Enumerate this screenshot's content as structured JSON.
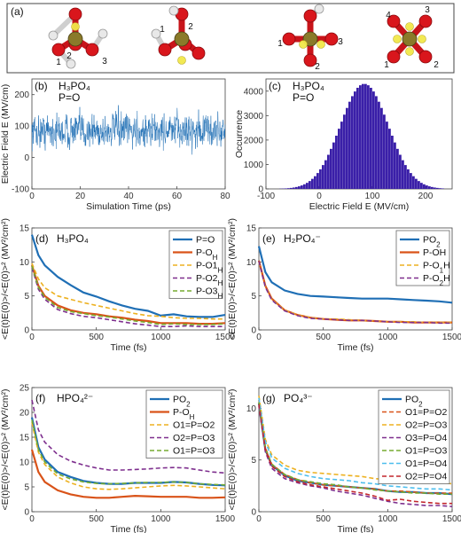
{
  "panel_a": {
    "letter": "(a)",
    "molecules": [
      {
        "labels": [
          "1",
          "2",
          "3"
        ]
      },
      {
        "labels": [
          "1",
          "2"
        ]
      },
      {
        "labels": [
          "1",
          "2",
          "3"
        ]
      },
      {
        "labels": [
          "1",
          "2",
          "3",
          "4"
        ]
      }
    ]
  },
  "colors": {
    "blue": "#1f6fb5",
    "orange": "#d95319",
    "yellow": "#edb120",
    "purple": "#7e2f8e",
    "green": "#77ac30",
    "cyan": "#4dbeee",
    "red": "#c2272d",
    "histogram": "#3a1fa8",
    "oxygen": "#d9161c",
    "phosphorus": "#8a7a2a",
    "hydrogen": "#e8e8e8",
    "field": "#f2e84a"
  },
  "chart_data": [
    {
      "id": "b",
      "type": "line",
      "letter": "(b)",
      "title_lines": [
        "H₃PO₄",
        "P=O"
      ],
      "xlabel": "Simulation Time (ps)",
      "ylabel": "Electric Field E (MV/cm)",
      "xlim": [
        0,
        80
      ],
      "ylim": [
        -100,
        250
      ],
      "xticks": [
        0,
        20,
        40,
        60,
        80
      ],
      "yticks": [
        -100,
        0,
        100,
        200
      ],
      "grid": false,
      "series": [
        {
          "mean": 85,
          "std": 45,
          "color": "#1f6fb5"
        }
      ]
    },
    {
      "id": "c",
      "type": "bar",
      "letter": "(c)",
      "title_lines": [
        "H₃PO₄",
        "P=O"
      ],
      "xlabel": "Electric Field E (MV/cm)",
      "ylabel": "Occurrence",
      "xlim": [
        -100,
        250
      ],
      "ylim": [
        0,
        4500
      ],
      "xticks": [
        -100,
        0,
        100,
        200
      ],
      "yticks": [
        0,
        1000,
        2000,
        3000,
        4000
      ],
      "grid": false,
      "bin_width": 5,
      "peak": 4300,
      "center": 85,
      "sigma": 45
    },
    {
      "id": "d",
      "type": "line",
      "letter": "(d)",
      "title": "H₃PO₄",
      "xlabel": "Time (fs)",
      "ylabel": "<E(t)E(0)>/<E(0)>² (MV²/cm²)",
      "xlim": [
        0,
        1500
      ],
      "ylim": [
        0,
        15
      ],
      "xticks": [
        0,
        500,
        1000,
        1500
      ],
      "yticks": [
        0,
        5,
        10,
        15
      ],
      "legend_position": "top-right",
      "series": [
        {
          "name": "P=O",
          "color": "#1f6fb5",
          "dash": "solid",
          "x": [
            0,
            50,
            100,
            200,
            300,
            400,
            500,
            600,
            700,
            800,
            900,
            1000,
            1100,
            1200,
            1300,
            1400,
            1500
          ],
          "y": [
            14,
            11,
            9.5,
            7.8,
            6.6,
            5.5,
            4.9,
            4.2,
            3.6,
            3.1,
            2.8,
            2.1,
            2.3,
            2.0,
            1.9,
            1.9,
            2.2
          ]
        },
        {
          "name": "P-O_H",
          "color": "#d95319",
          "dash": "solid",
          "x": [
            0,
            50,
            100,
            200,
            300,
            400,
            500,
            600,
            700,
            800,
            900,
            1000,
            1100,
            1200,
            1300,
            1400,
            1500
          ],
          "y": [
            9.5,
            6.5,
            5.0,
            3.6,
            2.9,
            2.5,
            2.3,
            2.0,
            1.8,
            1.5,
            1.3,
            1.0,
            1.0,
            1.0,
            0.9,
            0.9,
            1.0
          ]
        },
        {
          "name": "P-O1_H",
          "color": "#edb120",
          "dash": "dashed",
          "x": [
            0,
            50,
            100,
            200,
            300,
            400,
            500,
            600,
            700,
            800,
            900,
            1000,
            1100,
            1200,
            1300,
            1400,
            1500
          ],
          "y": [
            9.8,
            7.5,
            6.2,
            5.0,
            4.5,
            4.0,
            3.6,
            3.2,
            2.8,
            2.4,
            2.1,
            2.0,
            1.8,
            1.7,
            1.7,
            1.6,
            1.6
          ]
        },
        {
          "name": "P-O2_H",
          "color": "#7e2f8e",
          "dash": "dashed",
          "x": [
            0,
            50,
            100,
            200,
            300,
            400,
            500,
            600,
            700,
            800,
            900,
            1000,
            1100,
            1200,
            1300,
            1400,
            1500
          ],
          "y": [
            9.2,
            6.0,
            4.5,
            3.0,
            2.4,
            2.0,
            1.8,
            1.5,
            1.2,
            0.9,
            0.7,
            0.5,
            0.5,
            0.6,
            0.5,
            0.5,
            0.5
          ]
        },
        {
          "name": "P-O3_H",
          "color": "#77ac30",
          "dash": "dashed",
          "x": [
            0,
            50,
            100,
            200,
            300,
            400,
            500,
            600,
            700,
            800,
            900,
            1000,
            1100,
            1200,
            1300,
            1400,
            1500
          ],
          "y": [
            9.4,
            6.3,
            4.8,
            3.3,
            2.7,
            2.4,
            2.1,
            1.9,
            1.6,
            1.3,
            1.1,
            0.8,
            0.9,
            0.8,
            0.8,
            0.8,
            0.9
          ]
        }
      ]
    },
    {
      "id": "e",
      "type": "line",
      "letter": "(e)",
      "title": "H₂PO₄⁻",
      "xlabel": "Time (fs)",
      "ylabel": "<E(t)E(0)>/<E(0)>² (MV²/cm²)",
      "xlim": [
        0,
        1500
      ],
      "ylim": [
        0,
        15
      ],
      "xticks": [
        0,
        500,
        1000,
        1500
      ],
      "yticks": [
        0,
        5,
        10,
        15
      ],
      "legend_position": "top-right",
      "series": [
        {
          "name": "PO_2",
          "color": "#1f6fb5",
          "dash": "solid",
          "x": [
            0,
            50,
            100,
            200,
            300,
            400,
            500,
            600,
            700,
            800,
            900,
            1000,
            1100,
            1200,
            1300,
            1400,
            1500
          ],
          "y": [
            12.3,
            8.5,
            7.0,
            5.8,
            5.3,
            5.0,
            4.9,
            4.8,
            4.7,
            4.6,
            4.6,
            4.6,
            4.5,
            4.4,
            4.3,
            4.2,
            4.0
          ]
        },
        {
          "name": "P-OH",
          "color": "#d95319",
          "dash": "solid",
          "x": [
            0,
            50,
            100,
            200,
            300,
            400,
            500,
            600,
            700,
            800,
            900,
            1000,
            1100,
            1200,
            1300,
            1400,
            1500
          ],
          "y": [
            10.2,
            6.5,
            4.6,
            2.9,
            2.2,
            1.8,
            1.6,
            1.5,
            1.4,
            1.4,
            1.3,
            1.2,
            1.2,
            1.1,
            1.1,
            1.1,
            1.1
          ]
        },
        {
          "name": "P-O_1H",
          "color": "#edb120",
          "dash": "dashed",
          "x": [
            0,
            50,
            100,
            200,
            300,
            400,
            500,
            600,
            700,
            800,
            900,
            1000,
            1100,
            1200,
            1300,
            1400,
            1500
          ],
          "y": [
            10.0,
            6.4,
            4.5,
            2.9,
            2.2,
            1.8,
            1.6,
            1.6,
            1.5,
            1.4,
            1.3,
            1.2,
            1.2,
            1.2,
            1.1,
            1.1,
            1.1
          ]
        },
        {
          "name": "P-O_2H",
          "color": "#7e2f8e",
          "dash": "dashed",
          "x": [
            0,
            50,
            100,
            200,
            300,
            400,
            500,
            600,
            700,
            800,
            900,
            1000,
            1100,
            1200,
            1300,
            1400,
            1500
          ],
          "y": [
            10.1,
            6.3,
            4.4,
            2.8,
            2.1,
            1.7,
            1.6,
            1.5,
            1.4,
            1.4,
            1.3,
            1.2,
            1.1,
            1.1,
            1.1,
            1.0,
            1.0
          ]
        }
      ]
    },
    {
      "id": "f",
      "type": "line",
      "letter": "(f)",
      "title": "HPO₄²⁻",
      "xlabel": "Time (fs)",
      "ylabel": "<E(t)E(0)>/<E(0)>² (MV²/cm²)",
      "xlim": [
        0,
        1500
      ],
      "ylim": [
        0,
        25
      ],
      "xticks": [
        0,
        500,
        1000,
        1500
      ],
      "yticks": [
        0,
        5,
        10,
        15,
        20,
        25
      ],
      "legend_position": "top-right",
      "series": [
        {
          "name": "PO_2",
          "color": "#1f6fb5",
          "dash": "solid",
          "x": [
            0,
            50,
            100,
            200,
            300,
            400,
            500,
            600,
            700,
            800,
            900,
            1000,
            1100,
            1200,
            1300,
            1400,
            1500
          ],
          "y": [
            19,
            13,
            10.5,
            8.0,
            7.0,
            6.2,
            5.8,
            5.6,
            5.6,
            5.8,
            5.8,
            5.8,
            6.0,
            5.9,
            5.6,
            5.4,
            5.3
          ]
        },
        {
          "name": "P-O_H",
          "color": "#d95319",
          "dash": "solid",
          "x": [
            0,
            50,
            100,
            200,
            300,
            400,
            500,
            600,
            700,
            800,
            900,
            1000,
            1100,
            1200,
            1300,
            1400,
            1500
          ],
          "y": [
            12.5,
            8.0,
            6.0,
            4.3,
            3.5,
            3.0,
            2.8,
            2.8,
            3.0,
            3.2,
            3.1,
            3.0,
            3.0,
            3.0,
            2.8,
            2.8,
            2.9
          ]
        },
        {
          "name": "O1=P=O2",
          "color": "#edb120",
          "dash": "dashed",
          "x": [
            0,
            50,
            100,
            200,
            300,
            400,
            500,
            600,
            700,
            800,
            900,
            1000,
            1100,
            1200,
            1300,
            1400,
            1500
          ],
          "y": [
            18,
            12,
            9.5,
            7.0,
            5.8,
            5.0,
            4.6,
            4.5,
            4.6,
            4.8,
            5.0,
            5.2,
            5.3,
            5.2,
            5.0,
            4.8,
            4.6
          ]
        },
        {
          "name": "O2=P=O3",
          "color": "#7e2f8e",
          "dash": "dashed",
          "x": [
            0,
            50,
            100,
            200,
            300,
            400,
            500,
            600,
            700,
            800,
            900,
            1000,
            1100,
            1200,
            1300,
            1400,
            1500
          ],
          "y": [
            22.5,
            16.5,
            14.0,
            11.5,
            10.2,
            9.4,
            8.8,
            8.4,
            8.4,
            8.5,
            8.6,
            8.8,
            8.9,
            8.8,
            8.4,
            8.0,
            7.8
          ]
        },
        {
          "name": "O1=P=O3",
          "color": "#77ac30",
          "dash": "dashed",
          "x": [
            0,
            50,
            100,
            200,
            300,
            400,
            500,
            600,
            700,
            800,
            900,
            1000,
            1100,
            1200,
            1300,
            1400,
            1500
          ],
          "y": [
            18.5,
            12.5,
            10.0,
            7.6,
            6.6,
            6.0,
            5.7,
            5.6,
            5.7,
            5.8,
            5.9,
            5.9,
            6.0,
            5.9,
            5.6,
            5.5,
            5.4
          ]
        }
      ]
    },
    {
      "id": "g",
      "type": "line",
      "letter": "(g)",
      "title": "PO₄³⁻",
      "xlabel": "Time (fs)",
      "ylabel": "<E(t)E(0)>/<E(0)>² (MV²/cm²)",
      "xlim": [
        0,
        1500
      ],
      "ylim": [
        0,
        12
      ],
      "xticks": [
        0,
        500,
        1000,
        1500
      ],
      "yticks": [
        0,
        5,
        10
      ],
      "legend_position": "top-right",
      "series": [
        {
          "name": "PO_2",
          "color": "#1f6fb5",
          "dash": "solid",
          "x": [
            0,
            50,
            100,
            200,
            300,
            400,
            500,
            600,
            700,
            800,
            900,
            1000,
            1100,
            1200,
            1300,
            1400,
            1500
          ],
          "y": [
            10.5,
            6.0,
            4.5,
            3.5,
            3.0,
            2.8,
            2.6,
            2.5,
            2.4,
            2.3,
            2.2,
            2.0,
            1.9,
            1.9,
            1.8,
            1.8,
            1.7
          ]
        },
        {
          "name": "O1=P=O2",
          "color": "#d95319",
          "dash": "dashed",
          "x": [
            0,
            50,
            100,
            200,
            300,
            400,
            500,
            600,
            700,
            800,
            900,
            1000,
            1100,
            1200,
            1300,
            1400,
            1500
          ],
          "y": [
            10.8,
            6.2,
            4.6,
            3.6,
            3.1,
            2.8,
            2.6,
            2.5,
            2.4,
            2.3,
            2.2,
            2.0,
            2.0,
            1.9,
            1.8,
            1.8,
            1.8
          ]
        },
        {
          "name": "O2=P=O3",
          "color": "#edb120",
          "dash": "dashed",
          "x": [
            0,
            50,
            100,
            200,
            300,
            400,
            500,
            600,
            700,
            800,
            900,
            1000,
            1100,
            1200,
            1300,
            1400,
            1500
          ],
          "y": [
            11.2,
            7.0,
            5.5,
            4.5,
            4.0,
            3.8,
            3.7,
            3.6,
            3.5,
            3.4,
            3.2,
            3.1,
            3.0,
            2.9,
            2.8,
            2.8,
            2.7
          ]
        },
        {
          "name": "O3=P=O4",
          "color": "#7e2f8e",
          "dash": "dashed",
          "x": [
            0,
            50,
            100,
            200,
            300,
            400,
            500,
            600,
            700,
            800,
            900,
            1000,
            1100,
            1200,
            1300,
            1400,
            1500
          ],
          "y": [
            10.2,
            5.8,
            4.2,
            3.2,
            2.8,
            2.5,
            2.3,
            2.0,
            1.8,
            1.6,
            1.3,
            1.0,
            0.8,
            0.7,
            0.6,
            0.6,
            0.5
          ]
        },
        {
          "name": "O1=P=O3",
          "color": "#77ac30",
          "dash": "dashed",
          "x": [
            0,
            50,
            100,
            200,
            300,
            400,
            500,
            600,
            700,
            800,
            900,
            1000,
            1100,
            1200,
            1300,
            1400,
            1500
          ],
          "y": [
            10.6,
            6.1,
            4.6,
            3.6,
            3.1,
            2.9,
            2.7,
            2.6,
            2.4,
            2.3,
            2.1,
            2.0,
            1.9,
            1.8,
            1.8,
            1.7,
            1.7
          ]
        },
        {
          "name": "O1=P=O4",
          "color": "#4dbeee",
          "dash": "dashed",
          "x": [
            0,
            50,
            100,
            200,
            300,
            400,
            500,
            600,
            700,
            800,
            900,
            1000,
            1100,
            1200,
            1300,
            1400,
            1500
          ],
          "y": [
            11.0,
            6.8,
            5.2,
            4.2,
            3.7,
            3.4,
            3.2,
            3.1,
            3.0,
            2.8,
            2.7,
            2.5,
            2.4,
            2.3,
            2.2,
            2.2,
            2.1
          ]
        },
        {
          "name": "O2=P=O4",
          "color": "#c2272d",
          "dash": "dashed",
          "x": [
            0,
            50,
            100,
            200,
            300,
            400,
            500,
            600,
            700,
            800,
            900,
            1000,
            1100,
            1200,
            1300,
            1400,
            1500
          ],
          "y": [
            10.4,
            6.0,
            4.4,
            3.4,
            2.9,
            2.6,
            2.4,
            2.2,
            2.0,
            1.8,
            1.5,
            1.1,
            1.2,
            1.0,
            0.9,
            0.8,
            0.8
          ]
        }
      ]
    }
  ]
}
